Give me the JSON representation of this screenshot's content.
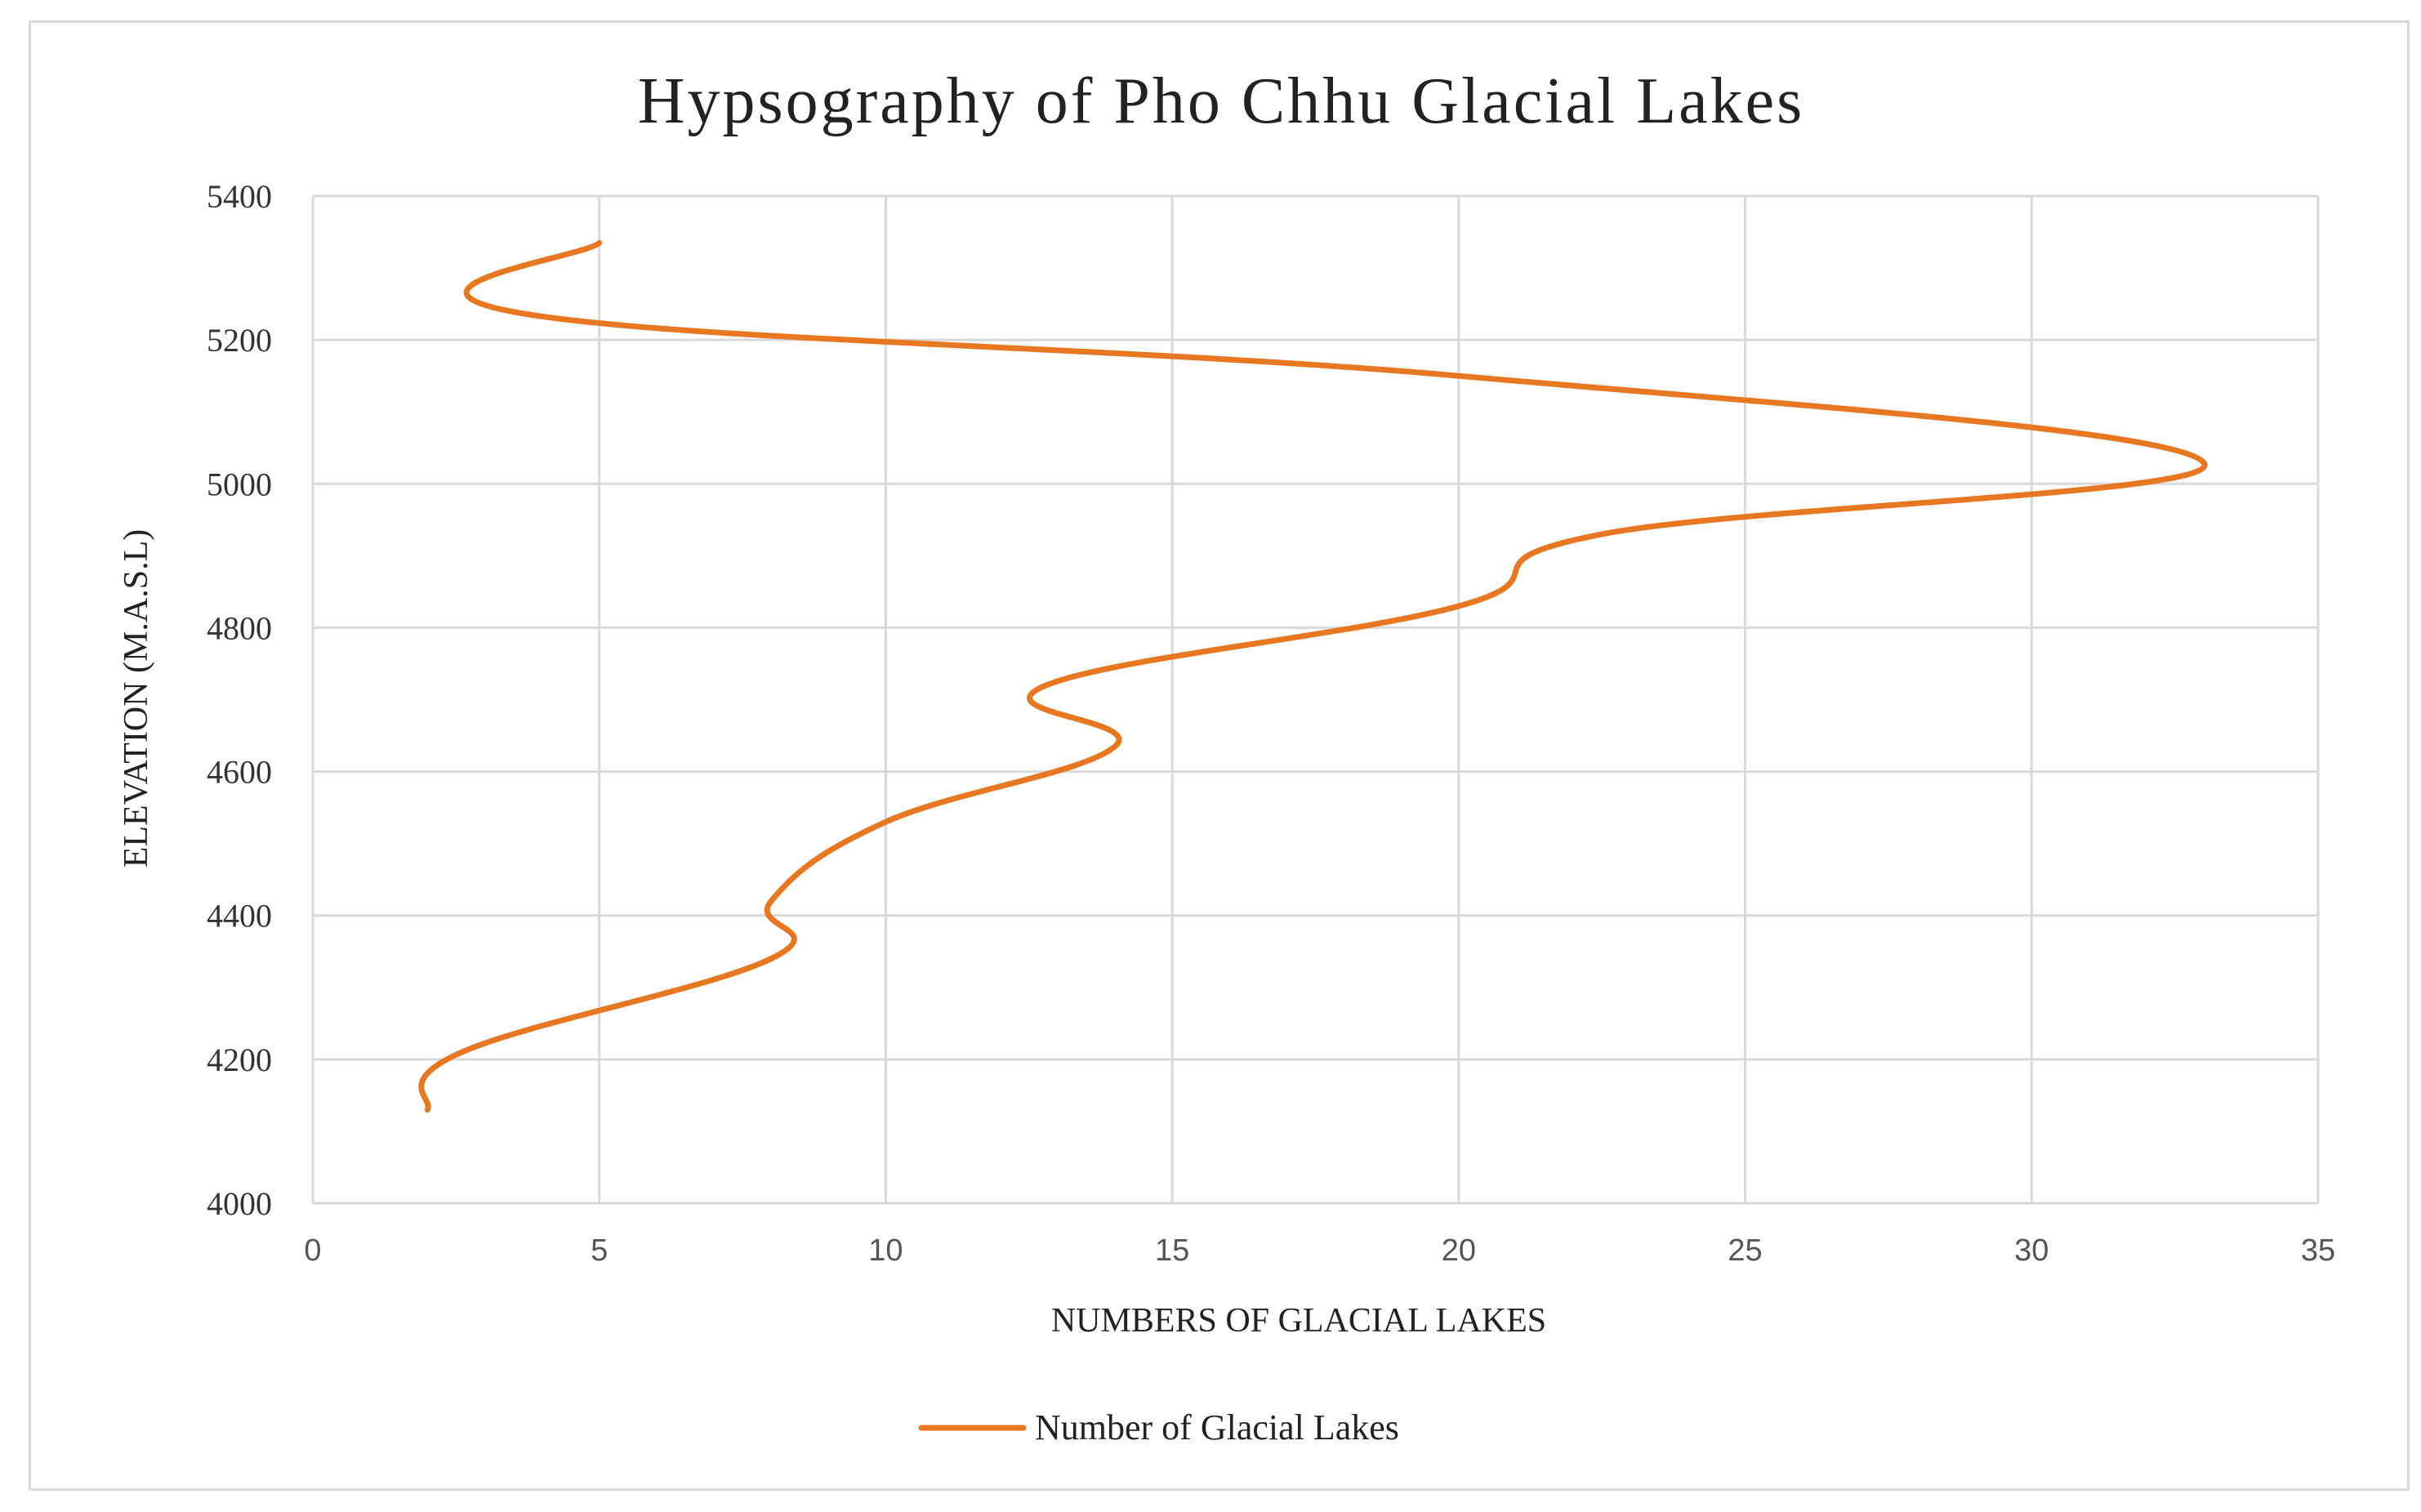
{
  "colors": {
    "series": "#E87722",
    "grid": "#d9d9d9",
    "border": "#d9d9d9"
  },
  "chart_data": {
    "type": "line",
    "title": "Hypsography of Pho Chhu Glacial Lakes",
    "xlabel": "NUMBERS OF GLACIAL LAKES",
    "ylabel": "ELEVATION (M.A.S.L)",
    "xlim": [
      0,
      35
    ],
    "ylim": [
      4000,
      5400
    ],
    "xticks": [
      "0",
      "5",
      "10",
      "15",
      "20",
      "25",
      "30",
      "35"
    ],
    "yticks": [
      "4000",
      "4200",
      "4400",
      "4600",
      "4800",
      "5000",
      "5200",
      "5400"
    ],
    "grid": true,
    "legend_position": "bottom",
    "series": [
      {
        "name": "Number of Glacial Lakes",
        "color": "#E87722",
        "points": [
          {
            "x": 2,
            "y": 4130
          },
          {
            "x": 2.6,
            "y": 4210
          },
          {
            "x": 8,
            "y": 4340
          },
          {
            "x": 8,
            "y": 4420
          },
          {
            "x": 10,
            "y": 4530
          },
          {
            "x": 14,
            "y": 4635
          },
          {
            "x": 12.8,
            "y": 4720
          },
          {
            "x": 20,
            "y": 4830
          },
          {
            "x": 22.5,
            "y": 4930
          },
          {
            "x": 33,
            "y": 5030
          },
          {
            "x": 20,
            "y": 5150
          },
          {
            "x": 3.8,
            "y": 5235
          },
          {
            "x": 5,
            "y": 5335
          }
        ]
      }
    ]
  }
}
